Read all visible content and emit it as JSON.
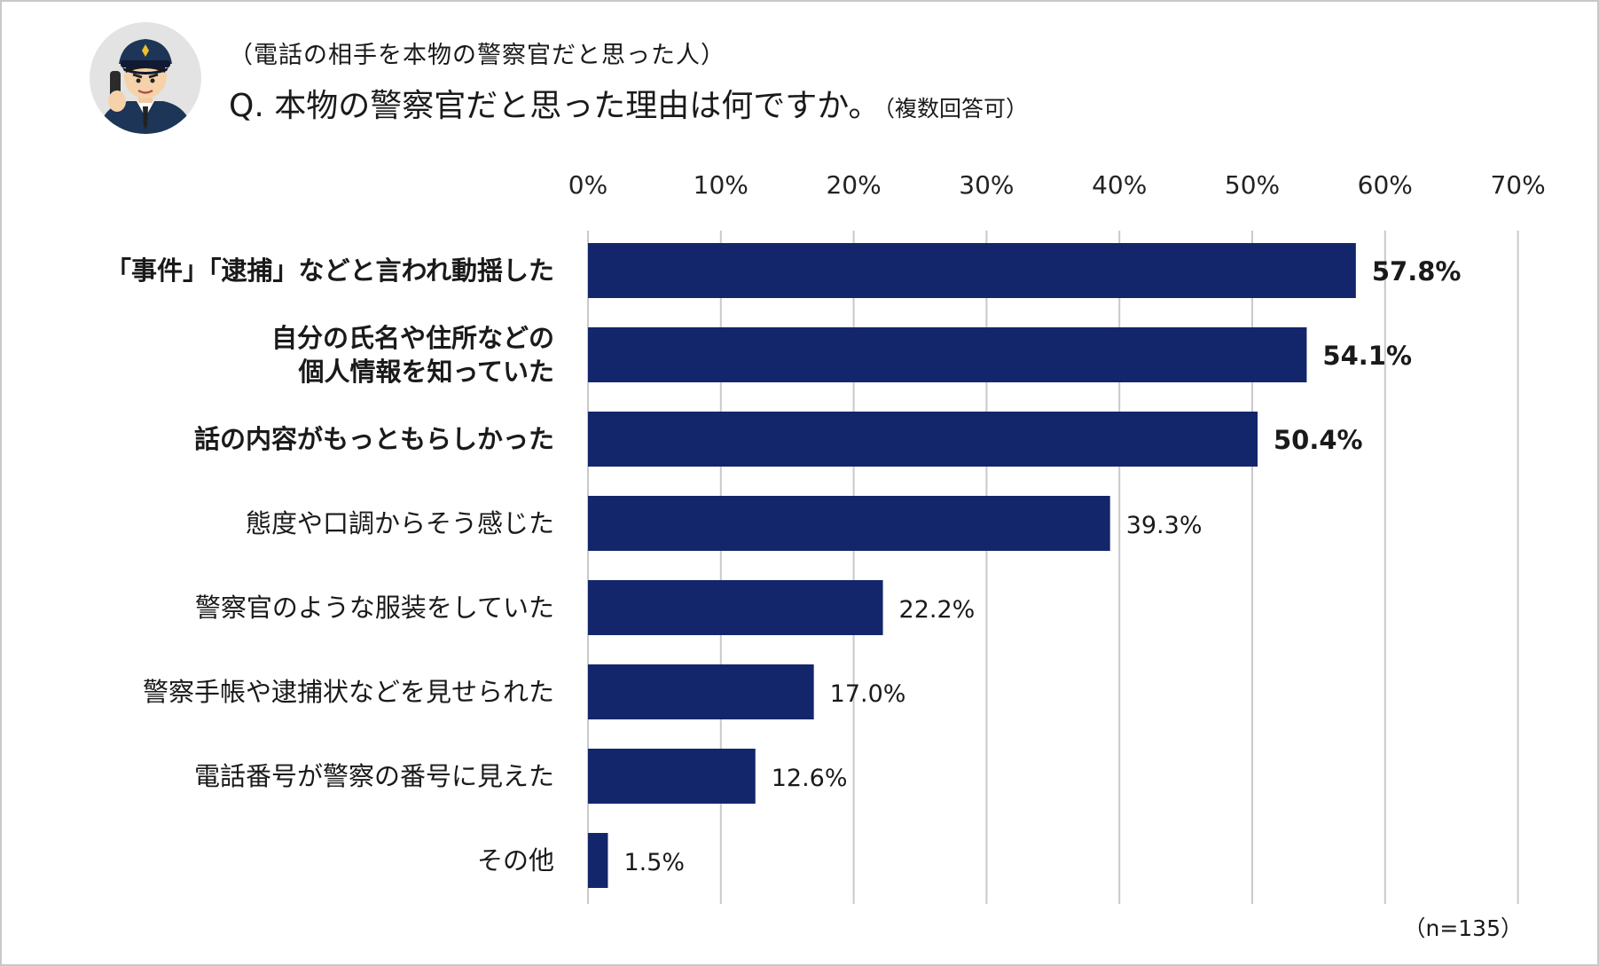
{
  "header": {
    "subtitle": "（電話の相手を本物の警察官だと思った人）",
    "title": "Q. 本物の警察官だと思った理由は何ですか。",
    "title_note": "（複数回答可）",
    "avatar_icon": "police-officer-on-phone-icon"
  },
  "footer": {
    "sample_note": "（n=135）"
  },
  "colors": {
    "bar": "#13266b",
    "grid": "#c9c9c9",
    "avatar_bg": "#e3e3e3",
    "uniform": "#1d3557"
  },
  "chart_data": {
    "type": "bar",
    "orientation": "horizontal",
    "title": "Q. 本物の警察官だと思った理由は何ですか。",
    "xlim": [
      0,
      70
    ],
    "ticks": [
      "0%",
      "10%",
      "20%",
      "30%",
      "40%",
      "50%",
      "60%",
      "70%"
    ],
    "tick_values": [
      0,
      10,
      20,
      30,
      40,
      50,
      60,
      70
    ],
    "axis_position": "top",
    "grid": true,
    "categories": [
      {
        "lines": [
          "「事件」「逮捕」などと言われ動揺した"
        ],
        "bold": true
      },
      {
        "lines": [
          "自分の氏名や住所などの",
          "個人情報を知っていた"
        ],
        "bold": true
      },
      {
        "lines": [
          "話の内容がもっともらしかった"
        ],
        "bold": true
      },
      {
        "lines": [
          "態度や口調からそう感じた"
        ],
        "bold": false
      },
      {
        "lines": [
          "警察官のような服装をしていた"
        ],
        "bold": false
      },
      {
        "lines": [
          "警察手帳や逮捕状などを見せられた"
        ],
        "bold": false
      },
      {
        "lines": [
          "電話番号が警察の番号に見えた"
        ],
        "bold": false
      },
      {
        "lines": [
          "その他"
        ],
        "bold": false
      }
    ],
    "values": [
      57.8,
      54.1,
      50.4,
      39.3,
      22.2,
      17.0,
      12.6,
      1.5
    ],
    "value_labels": [
      "57.8%",
      "54.1%",
      "50.4%",
      "39.3%",
      "22.2%",
      "17.0%",
      "12.6%",
      "1.5%"
    ]
  }
}
